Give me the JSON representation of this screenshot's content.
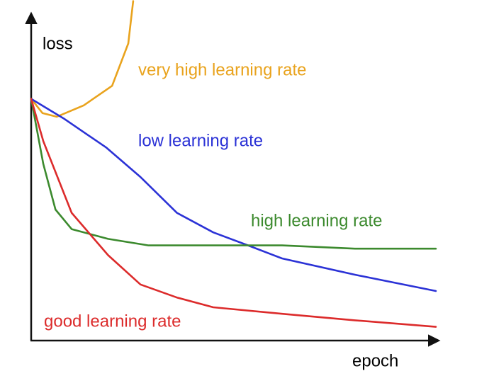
{
  "chart_data": {
    "type": "line",
    "x_label": "epoch",
    "y_label": "loss",
    "xlim": [
      0,
      100
    ],
    "ylim": [
      0,
      100
    ],
    "series": [
      {
        "name": "very high learning rate",
        "color": "#e9a31d",
        "x": [
          0,
          2.8,
          6.3,
          13,
          20,
          24,
          25.2
        ],
        "values": [
          74,
          69.6,
          68.5,
          72,
          78,
          91,
          104
        ]
      },
      {
        "name": "low learning rate",
        "color": "#2b32d6",
        "x": [
          0,
          8,
          18.6,
          27,
          36,
          45,
          53.6,
          62,
          80,
          100
        ],
        "values": [
          74,
          68,
          59,
          50,
          39,
          33,
          29,
          25,
          20,
          15
        ]
      },
      {
        "name": "high learning rate",
        "color": "#3c8a2e",
        "x": [
          0,
          3,
          6,
          10,
          19,
          29,
          45,
          62,
          80,
          100
        ],
        "values": [
          74,
          54,
          40,
          34,
          31,
          29,
          29,
          29,
          28,
          28
        ]
      },
      {
        "name": "good learning rate",
        "color": "#dc2b2b",
        "x": [
          0,
          3,
          10,
          19,
          27,
          36,
          45,
          62,
          80,
          100
        ],
        "values": [
          74,
          61,
          39,
          26,
          17,
          13,
          10,
          8,
          6,
          4
        ]
      }
    ]
  }
}
